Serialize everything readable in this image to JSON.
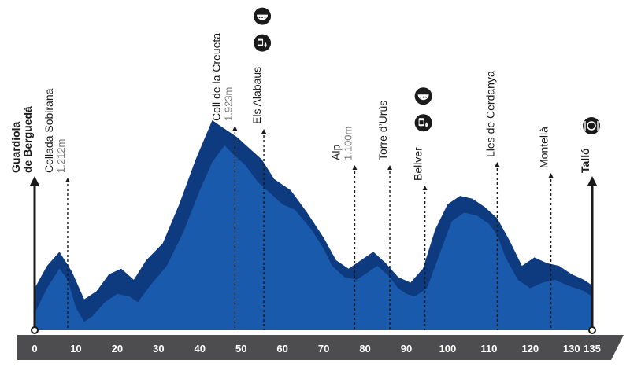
{
  "chart_data": {
    "type": "area",
    "xlabel": "",
    "ylabel": "",
    "xlim": [
      0,
      135
    ],
    "x_ticks": [
      0,
      10,
      20,
      30,
      40,
      50,
      60,
      70,
      80,
      90,
      100,
      110,
      120,
      130,
      135
    ],
    "colors": {
      "front": "#1a5aad",
      "back": "#0e3b80",
      "axis": "#4d4d4f",
      "marker": "#1a1a1a"
    },
    "profile": [
      [
        0,
        12
      ],
      [
        3,
        30
      ],
      [
        6,
        44
      ],
      [
        8,
        36
      ],
      [
        10,
        16
      ],
      [
        12,
        6
      ],
      [
        14,
        10
      ],
      [
        17,
        20
      ],
      [
        20,
        26
      ],
      [
        23,
        24
      ],
      [
        25,
        20
      ],
      [
        28,
        32
      ],
      [
        32,
        46
      ],
      [
        36,
        70
      ],
      [
        40,
        100
      ],
      [
        43,
        120
      ],
      [
        46,
        132
      ],
      [
        48,
        126
      ],
      [
        51,
        118
      ],
      [
        54,
        106
      ],
      [
        57,
        98
      ],
      [
        60,
        90
      ],
      [
        63,
        86
      ],
      [
        67,
        72
      ],
      [
        70,
        58
      ],
      [
        72,
        46
      ],
      [
        75,
        38
      ],
      [
        78,
        36
      ],
      [
        80,
        40
      ],
      [
        83,
        46
      ],
      [
        86,
        38
      ],
      [
        88,
        30
      ],
      [
        90,
        26
      ],
      [
        92,
        24
      ],
      [
        95,
        30
      ],
      [
        98,
        54
      ],
      [
        101,
        78
      ],
      [
        104,
        84
      ],
      [
        107,
        82
      ],
      [
        110,
        76
      ],
      [
        112,
        68
      ],
      [
        114,
        52
      ],
      [
        117,
        36
      ],
      [
        120,
        30
      ],
      [
        123,
        34
      ],
      [
        126,
        36
      ],
      [
        129,
        32
      ],
      [
        131,
        30
      ],
      [
        133,
        28
      ],
      [
        135,
        24
      ]
    ],
    "profile_back": [
      [
        0,
        30
      ],
      [
        3,
        46
      ],
      [
        6,
        56
      ],
      [
        9,
        42
      ],
      [
        12,
        22
      ],
      [
        15,
        28
      ],
      [
        18,
        40
      ],
      [
        21,
        44
      ],
      [
        24,
        36
      ],
      [
        27,
        50
      ],
      [
        31,
        62
      ],
      [
        35,
        90
      ],
      [
        39,
        122
      ],
      [
        43,
        150
      ],
      [
        46,
        144
      ],
      [
        49,
        138
      ],
      [
        52,
        130
      ],
      [
        55,
        122
      ],
      [
        58,
        108
      ],
      [
        62,
        100
      ],
      [
        66,
        84
      ],
      [
        70,
        66
      ],
      [
        73,
        50
      ],
      [
        76,
        44
      ],
      [
        79,
        50
      ],
      [
        82,
        56
      ],
      [
        85,
        48
      ],
      [
        88,
        38
      ],
      [
        91,
        34
      ],
      [
        94,
        44
      ],
      [
        97,
        72
      ],
      [
        100,
        90
      ],
      [
        103,
        96
      ],
      [
        106,
        94
      ],
      [
        109,
        88
      ],
      [
        112,
        80
      ],
      [
        115,
        64
      ],
      [
        118,
        46
      ],
      [
        121,
        52
      ],
      [
        124,
        48
      ],
      [
        127,
        46
      ],
      [
        130,
        40
      ],
      [
        133,
        36
      ],
      [
        135,
        32
      ]
    ],
    "markers": [
      {
        "km": 0,
        "lines": [
          "Guardiola",
          "de Berguedà"
        ],
        "alt": "",
        "bold": true,
        "arrow": true
      },
      {
        "km": 8,
        "lines": [
          "Collada Sobirana"
        ],
        "alt": "1.212m",
        "bold": false,
        "arrow": false
      },
      {
        "km": 48.5,
        "lines": [
          "Coll de la Creueta"
        ],
        "alt": "1.923m",
        "bold": false,
        "arrow": false
      },
      {
        "km": 55.5,
        "lines": [
          "Els Alabaus"
        ],
        "alt": "",
        "bold": false,
        "arrow": false,
        "icons": [
          "watermelon-icon",
          "drink-icon"
        ]
      },
      {
        "km": 77.5,
        "lines": [
          "Alp"
        ],
        "alt": "1.100m",
        "bold": false,
        "arrow": false
      },
      {
        "km": 86,
        "lines": [
          "Torre d’Urús"
        ],
        "alt": "",
        "bold": false,
        "arrow": false
      },
      {
        "km": 94.5,
        "lines": [
          "Bellver"
        ],
        "alt": "",
        "bold": false,
        "arrow": false,
        "icons": [
          "watermelon-icon",
          "drink-icon"
        ]
      },
      {
        "km": 112,
        "lines": [
          "Lles de Cerdanya"
        ],
        "alt": "",
        "bold": false,
        "arrow": false
      },
      {
        "km": 125,
        "lines": [
          "Montellà"
        ],
        "alt": "",
        "bold": false,
        "arrow": false
      },
      {
        "km": 135,
        "lines": [
          "Talló"
        ],
        "alt": "",
        "bold": true,
        "arrow": true,
        "icons": [
          "meal-icon"
        ]
      }
    ]
  }
}
